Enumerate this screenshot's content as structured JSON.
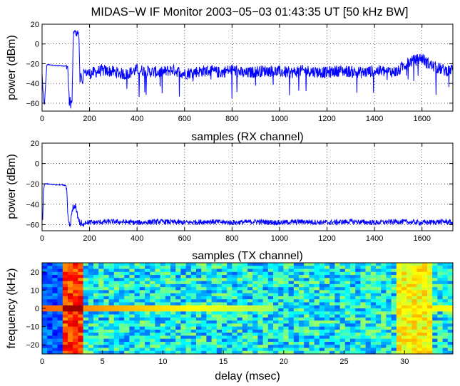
{
  "title": "MIDAS−W IF Monitor  2003−05−03  01:43:35 UT [50 kHz BW]",
  "colors": {
    "trace": "#0000ff",
    "axis": "#000000",
    "grid": "#000000",
    "background": "#ffffff"
  },
  "chart_data": [
    {
      "type": "line",
      "ylabel": "power (dBm)",
      "xlabel": "samples (RX channel)",
      "xlim": [
        0,
        1730
      ],
      "ylim": [
        -68,
        20
      ],
      "xticks": [
        0,
        200,
        400,
        600,
        800,
        1000,
        1200,
        1400,
        1600
      ],
      "yticks": [
        20,
        0,
        -20,
        -40,
        -60
      ],
      "grid": true,
      "series": [
        {
          "color": "#0000ff",
          "x": [
            0,
            3,
            6,
            10,
            15,
            20,
            30,
            40,
            60,
            80,
            100,
            108,
            110,
            113,
            115,
            118,
            120,
            123,
            126,
            130,
            133,
            135,
            140,
            145,
            150,
            155,
            158,
            160,
            163,
            166,
            170,
            175,
            180,
            185,
            200,
            250,
            300,
            350,
            400,
            450,
            500,
            550,
            600,
            650,
            700,
            750,
            800,
            850,
            900,
            950,
            1000,
            1050,
            1100,
            1150,
            1200,
            1250,
            1300,
            1350,
            1400,
            1450,
            1500,
            1520,
            1550,
            1580,
            1600,
            1620,
            1650,
            1700,
            1730
          ],
          "y": [
            -30,
            -45,
            -55,
            -62,
            -40,
            -21,
            -21,
            -21.5,
            -22,
            -22,
            -22.5,
            -23,
            -35,
            -50,
            -62,
            -55,
            -63,
            -58,
            -60,
            -10,
            13,
            12,
            12,
            10,
            12,
            8,
            -20,
            -40,
            -30,
            -35,
            -42,
            -26,
            -30,
            -28,
            -30,
            -27,
            -28,
            -31,
            -26,
            -28,
            -29,
            -26,
            -30,
            -28,
            -27,
            -29,
            -26,
            -30,
            -28,
            -27,
            -28,
            -29,
            -27,
            -28,
            -29,
            -27,
            -28,
            -29,
            -27,
            -28,
            -28,
            -22,
            -18,
            -16,
            -14,
            -19,
            -23,
            -27,
            -26
          ]
        }
      ]
    },
    {
      "type": "line",
      "ylabel": "power (dBm)",
      "xlabel": "samples (TX channel)",
      "xlim": [
        0,
        1730
      ],
      "ylim": [
        -66,
        20
      ],
      "xticks": [
        0,
        200,
        400,
        600,
        800,
        1000,
        1200,
        1400,
        1600
      ],
      "yticks": [
        20,
        0,
        -20,
        -40,
        -60
      ],
      "grid": true,
      "series": [
        {
          "color": "#0000ff",
          "x": [
            0,
            3,
            5,
            10,
            20,
            40,
            60,
            80,
            100,
            105,
            108,
            112,
            116,
            120,
            125,
            130,
            135,
            140,
            145,
            150,
            155,
            160,
            165,
            170,
            180,
            200,
            300,
            400,
            500,
            600,
            700,
            800,
            900,
            1000,
            1100,
            1200,
            1300,
            1400,
            1500,
            1600,
            1700,
            1730
          ],
          "y": [
            -48,
            -56,
            -30,
            -20,
            -20,
            -20.5,
            -21,
            -21,
            -21.5,
            -30,
            -52,
            -58,
            -62,
            -60,
            -48,
            -43,
            -45,
            -42,
            -45,
            -52,
            -55,
            -60,
            -58,
            -62,
            -57,
            -58,
            -57,
            -58,
            -57,
            -58,
            -57,
            -58,
            -57,
            -58,
            -57,
            -58,
            -57,
            -58,
            -57,
            -58,
            -57,
            -58
          ]
        }
      ]
    },
    {
      "type": "heatmap",
      "ylabel": "frequency (kHz)",
      "xlabel": "delay (msec)",
      "xlim": [
        0,
        34
      ],
      "ylim": [
        25,
        -25
      ],
      "xticks": [
        0,
        5,
        10,
        15,
        20,
        25,
        30
      ],
      "yticks": [
        -20,
        -10,
        0,
        10,
        20
      ],
      "colormap": "jet",
      "features": {
        "strong_band_msec": [
          1.8,
          3.2
        ],
        "dark_band_msec": [
          0,
          1.8
        ],
        "horizontal_line_khz": 0,
        "horizontal_line_end_msec": 19,
        "secondary_band_msec": [
          29.5,
          32.5
        ]
      }
    }
  ]
}
